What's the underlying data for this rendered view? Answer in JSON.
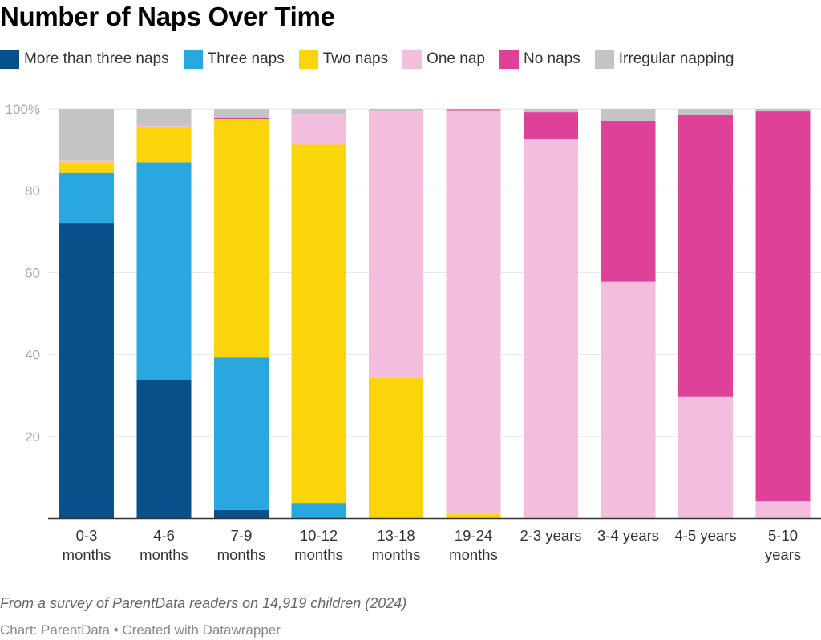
{
  "chart_data": {
    "type": "bar",
    "stacked": true,
    "title": "Number of Naps Over Time",
    "xlabel": "",
    "ylabel": "",
    "ylim": [
      0,
      100
    ],
    "yticks": [
      {
        "value": 20,
        "label": "20"
      },
      {
        "value": 40,
        "label": "40"
      },
      {
        "value": 60,
        "label": "60"
      },
      {
        "value": 80,
        "label": "80"
      },
      {
        "value": 100,
        "label": "100%"
      }
    ],
    "grid": true,
    "legend_position": "top-left",
    "categories": [
      [
        "0-3",
        "months"
      ],
      [
        "4-6",
        "months"
      ],
      [
        "7-9",
        "months"
      ],
      [
        "10-12",
        "months"
      ],
      [
        "13-18",
        "months"
      ],
      [
        "19-24",
        "months"
      ],
      [
        "2-3 years"
      ],
      [
        "3-4 years"
      ],
      [
        "4-5 years"
      ],
      [
        "5-10",
        "years"
      ]
    ],
    "series": [
      {
        "name": "More than three naps",
        "color": "#07508a",
        "values": [
          72.0,
          33.7,
          2.0,
          0,
          0,
          0,
          0,
          0,
          0,
          0
        ]
      },
      {
        "name": "Three naps",
        "color": "#29a8e0",
        "values": [
          12.4,
          53.3,
          37.3,
          3.7,
          0,
          0,
          0,
          0,
          0,
          0
        ]
      },
      {
        "name": "Two naps",
        "color": "#fad50c",
        "values": [
          2.6,
          8.6,
          58.1,
          87.6,
          34.3,
          1.0,
          0,
          0,
          0,
          0
        ]
      },
      {
        "name": "One nap",
        "color": "#f3bedd",
        "values": [
          0.4,
          0.3,
          0.2,
          7.5,
          65.1,
          98.7,
          92.7,
          57.8,
          29.6,
          4.1
        ]
      },
      {
        "name": "No naps",
        "color": "#df4199",
        "values": [
          0,
          0,
          0.3,
          0,
          0,
          0.2,
          6.5,
          39.3,
          69.0,
          95.3
        ]
      },
      {
        "name": "Irregular napping",
        "color": "#c4c4c4",
        "values": [
          12.6,
          4.1,
          2.1,
          1.2,
          0.6,
          0.1,
          0.8,
          2.9,
          1.4,
          0.6
        ]
      }
    ]
  },
  "footer": {
    "note": "From a survey of ParentData readers on 14,919 children (2024)",
    "credit": "Chart: ParentData • Created with Datawrapper"
  }
}
